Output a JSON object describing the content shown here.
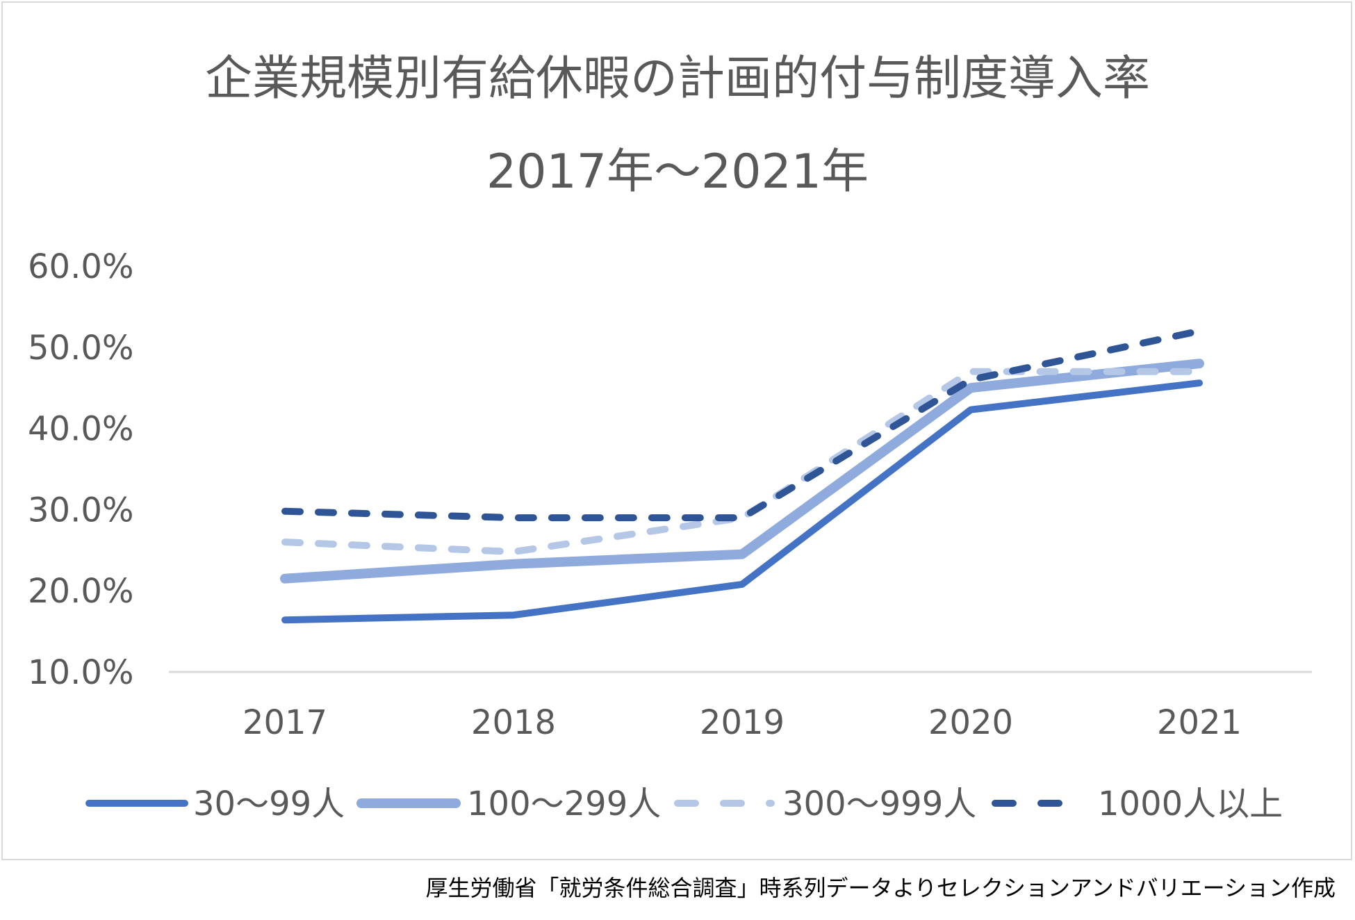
{
  "chart_data": {
    "type": "line",
    "title": "企業規模別有給休暇の計画的付与制度導入率",
    "subtitle": "2017年～2021年",
    "categories": [
      "2017",
      "2018",
      "2019",
      "2020",
      "2021"
    ],
    "y_tick_labels": [
      "10.0%",
      "20.0%",
      "30.0%",
      "40.0%",
      "50.0%",
      "60.0%"
    ],
    "ylim": [
      10,
      60
    ],
    "grid": false,
    "legend_position": "bottom",
    "series": [
      {
        "name": "30～99人",
        "values": [
          16.4,
          17.0,
          20.8,
          42.3,
          45.6
        ],
        "color": "#4472c4",
        "style": "solid",
        "width": 10
      },
      {
        "name": "100～299人",
        "values": [
          21.5,
          23.3,
          24.5,
          45.0,
          48.0
        ],
        "color": "#8faadc",
        "style": "solid",
        "width": 14
      },
      {
        "name": "300～999人",
        "values": [
          26.0,
          24.8,
          29.0,
          47.0,
          47.0
        ],
        "color": "#b4c7e7",
        "style": "dashed",
        "width": 10
      },
      {
        "name": "1000人以上",
        "values": [
          29.8,
          29.0,
          29.0,
          46.0,
          52.0
        ],
        "color": "#2f5597",
        "style": "dashed",
        "width": 10
      }
    ]
  },
  "source_note": "厚生労働省「就労条件総合調査」時系列データよりセレクションアンドバリエーション作成"
}
